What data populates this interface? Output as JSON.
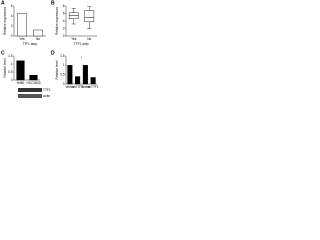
{
  "chart_data": [
    {
      "type": "bar",
      "panel": "A",
      "ylabel": "Relative expression",
      "xlabel": "TTF1 amp.",
      "categories": [
        "Yes",
        "No"
      ],
      "values": [
        4.5,
        1.2
      ],
      "color": "#ffffff",
      "ylim": [
        0,
        6
      ],
      "yticks": [
        0,
        2,
        4,
        6
      ]
    },
    {
      "type": "box",
      "panel": "B",
      "ylabel": "Relative expression",
      "xlabel": "TTF1 amp.",
      "categories": [
        "Yes",
        "No"
      ],
      "min": [
        3.2,
        2.0
      ],
      "q1": [
        4.6,
        3.8
      ],
      "median": [
        5.4,
        5.0
      ],
      "q3": [
        6.2,
        6.8
      ],
      "max": [
        7.4,
        7.8
      ],
      "color": "#ffffff",
      "ylim": [
        0,
        8
      ],
      "yticks": [
        0,
        2,
        4,
        6,
        8
      ]
    },
    {
      "type": "bar",
      "panel": "C",
      "ylabel": "Relative level",
      "categories": [
        "H460",
        "HCC1833"
      ],
      "values": [
        1.2,
        0.3
      ],
      "color": "#000000",
      "ylim": [
        0,
        1.5
      ],
      "yticks": [
        0,
        0.5,
        1,
        1.5
      ],
      "blot_labels": [
        "TTF1",
        "Actin"
      ]
    },
    {
      "type": "bar",
      "panel": "D",
      "ylabel": "Relative level",
      "categories": [
        "Vector",
        "shTTF1",
        "Vector",
        "shTTF1"
      ],
      "values": [
        1.0,
        0.4,
        1.0,
        0.35
      ],
      "color": "#000000",
      "ylim": [
        0,
        1.5
      ],
      "yticks": [
        0,
        0.5,
        1,
        1.5
      ],
      "annotation": "*"
    }
  ]
}
